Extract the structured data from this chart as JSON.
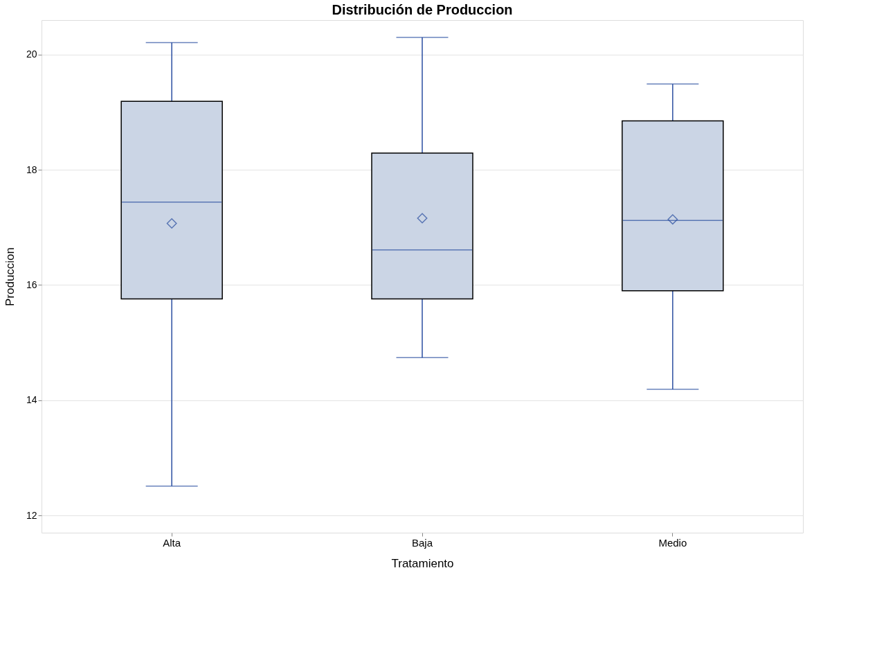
{
  "chart_data": {
    "type": "box",
    "title": "Distribución de Produccion",
    "xlabel": "Tratamiento",
    "ylabel": "Produccion",
    "categories": [
      "Alta",
      "Baja",
      "Medio"
    ],
    "boxes": [
      {
        "low": 12.51,
        "q1": 15.76,
        "median": 17.44,
        "q3": 19.19,
        "high": 20.21,
        "mean": 17.07
      },
      {
        "low": 14.74,
        "q1": 15.76,
        "median": 16.61,
        "q3": 18.29,
        "high": 20.3,
        "mean": 17.16
      },
      {
        "low": 14.19,
        "q1": 15.9,
        "median": 17.12,
        "q3": 18.85,
        "high": 19.49,
        "mean": 17.14
      }
    ],
    "color": "#cbd5e5",
    "ylim": [
      11.7,
      20.6
    ],
    "yticks": [
      12,
      14,
      16,
      18,
      20
    ],
    "grid": "y",
    "marker": "diamond"
  }
}
